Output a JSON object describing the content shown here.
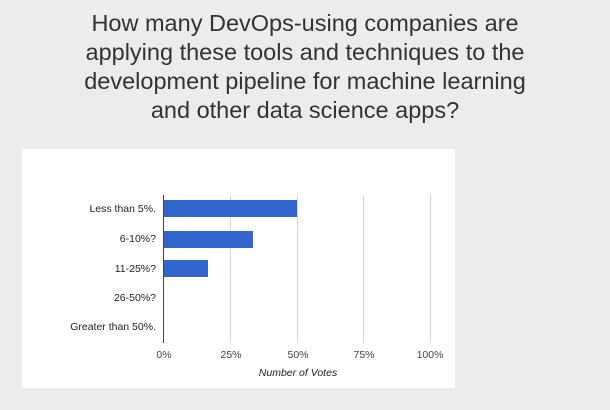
{
  "title_lines": [
    "How many DevOps-using companies are",
    "applying these tools and techniques to the",
    "development pipeline for machine learning",
    "and other data science apps?"
  ],
  "colors": {
    "bar": "#3366cc",
    "background": "#ececec",
    "panel": "#ffffff"
  },
  "chart_data": {
    "type": "bar",
    "orientation": "horizontal",
    "title": "How many DevOps-using companies are applying these tools and techniques to the development pipeline for machine learning and other data science apps?",
    "categories": [
      "Less than 5%.",
      "6-10%?",
      "11-25%?",
      "26-50%?",
      "Greater than 50%."
    ],
    "values": [
      50,
      33.3,
      16.7,
      0,
      0
    ],
    "xlabel": "Number of Votes",
    "ylabel": "",
    "xlim": [
      0,
      100
    ],
    "x_ticks": [
      "0%",
      "25%",
      "50%",
      "75%",
      "100%"
    ],
    "grid": true,
    "legend": null
  }
}
